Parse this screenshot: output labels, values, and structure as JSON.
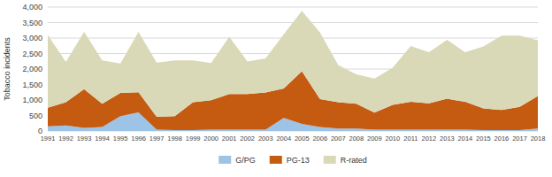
{
  "chart_data": {
    "type": "area",
    "stacked": true,
    "x": [
      1991,
      1992,
      1993,
      1994,
      1995,
      1996,
      1997,
      1998,
      1999,
      2000,
      2001,
      2002,
      2003,
      2004,
      2005,
      2006,
      2007,
      2008,
      2009,
      2010,
      2011,
      2012,
      2013,
      2014,
      2015,
      2016,
      2017,
      2018
    ],
    "series": [
      {
        "name": "G/PG",
        "color": "#9dc3e6",
        "values": [
          150,
          180,
          100,
          130,
          480,
          600,
          40,
          30,
          30,
          40,
          40,
          40,
          40,
          420,
          230,
          130,
          80,
          80,
          40,
          40,
          40,
          40,
          40,
          40,
          30,
          30,
          30,
          80
        ]
      },
      {
        "name": "PG-13",
        "color": "#c55a11",
        "values": [
          600,
          750,
          1250,
          750,
          750,
          650,
          420,
          450,
          900,
          950,
          1150,
          1150,
          1200,
          950,
          1700,
          900,
          850,
          800,
          550,
          800,
          900,
          850,
          1000,
          900,
          700,
          650,
          750,
          1050
        ]
      },
      {
        "name": "R-rated",
        "color": "#d9d9b8",
        "values": [
          2350,
          1300,
          1850,
          1400,
          950,
          1950,
          1750,
          1800,
          1350,
          1200,
          1850,
          1050,
          1100,
          1750,
          1950,
          2150,
          1200,
          950,
          1100,
          1200,
          1800,
          1650,
          1900,
          1600,
          2000,
          2400,
          2300,
          1800
        ]
      }
    ],
    "y_label": "Tobacco incidents",
    "xlim": [
      1991,
      2018
    ],
    "xticks": [
      1991,
      1992,
      1993,
      1994,
      1995,
      1996,
      1997,
      1998,
      1999,
      2000,
      2001,
      2002,
      2003,
      2004,
      2005,
      2006,
      2007,
      2008,
      2009,
      2010,
      2011,
      2012,
      2013,
      2014,
      2015,
      2016,
      2017,
      2018
    ],
    "ylim": [
      0,
      4000
    ],
    "yticks": [
      0,
      500,
      {
        "value": 1000,
        "label": "1,000"
      },
      {
        "value": 1500,
        "label": "1,500"
      },
      {
        "value": 2000,
        "label": "2,000"
      },
      {
        "value": 2500,
        "label": "2,500"
      },
      {
        "value": 3000,
        "label": "3,000"
      },
      {
        "value": 3500,
        "label": "3,500"
      },
      {
        "value": 4000,
        "label": "4,000"
      }
    ],
    "grid": true,
    "legend": "bottom"
  }
}
